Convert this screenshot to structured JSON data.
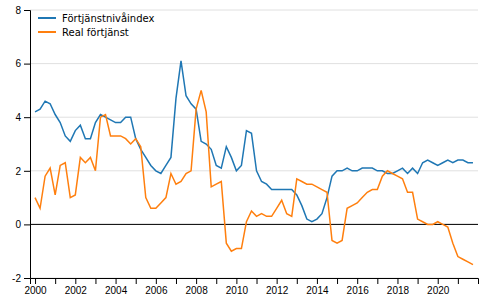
{
  "chart_data": {
    "type": "line",
    "x": [
      2000,
      2000.25,
      2000.5,
      2000.75,
      2001,
      2001.25,
      2001.5,
      2001.75,
      2002,
      2002.25,
      2002.5,
      2002.75,
      2003,
      2003.25,
      2003.5,
      2003.75,
      2004,
      2004.25,
      2004.5,
      2004.75,
      2005,
      2005.25,
      2005.5,
      2005.75,
      2006,
      2006.25,
      2006.5,
      2006.75,
      2007,
      2007.25,
      2007.5,
      2007.75,
      2008,
      2008.25,
      2008.5,
      2008.75,
      2009,
      2009.25,
      2009.5,
      2009.75,
      2010,
      2010.25,
      2010.5,
      2010.75,
      2011,
      2011.25,
      2011.5,
      2011.75,
      2012,
      2012.25,
      2012.5,
      2012.75,
      2013,
      2013.25,
      2013.5,
      2013.75,
      2014,
      2014.25,
      2014.5,
      2014.75,
      2015,
      2015.25,
      2015.5,
      2015.75,
      2016,
      2016.25,
      2016.5,
      2016.75,
      2017,
      2017.25,
      2017.5,
      2017.75,
      2018,
      2018.25,
      2018.5,
      2018.75,
      2019,
      2019.25,
      2019.5,
      2019.75,
      2020,
      2020.25,
      2020.5,
      2020.75,
      2021,
      2021.25,
      2021.5,
      2021.75
    ],
    "series": [
      {
        "name": "Förtjänstnivåindex",
        "values": [
          4.2,
          4.3,
          4.6,
          4.5,
          4.1,
          3.8,
          3.3,
          3.1,
          3.5,
          3.7,
          3.2,
          3.2,
          3.8,
          4.1,
          4.0,
          3.9,
          3.8,
          3.8,
          4.0,
          4.0,
          3.2,
          2.8,
          2.5,
          2.2,
          2.0,
          1.9,
          2.2,
          2.5,
          4.7,
          6.1,
          4.8,
          4.5,
          4.3,
          3.1,
          3.0,
          2.8,
          2.2,
          2.1,
          2.9,
          2.5,
          2.0,
          2.2,
          3.5,
          3.4,
          2.0,
          1.6,
          1.5,
          1.3,
          1.3,
          1.3,
          1.3,
          1.3,
          1.1,
          0.7,
          0.2,
          0.1,
          0.2,
          0.4,
          1.0,
          1.8,
          2.0,
          2.0,
          2.1,
          2.0,
          2.0,
          2.1,
          2.1,
          2.1,
          2.0,
          2.0,
          1.9,
          1.9,
          2.0,
          2.1,
          1.9,
          2.1,
          1.9,
          2.3,
          2.4,
          2.3,
          2.2,
          2.3,
          2.4,
          2.3,
          2.4,
          2.4,
          2.3,
          2.3
        ]
      },
      {
        "name": "Real förtjänst",
        "values": [
          1.0,
          0.6,
          1.8,
          2.1,
          1.1,
          2.2,
          2.3,
          1.0,
          1.1,
          2.5,
          2.3,
          2.5,
          2.0,
          4.0,
          4.1,
          3.3,
          3.3,
          3.3,
          3.2,
          3.0,
          3.2,
          2.9,
          1.0,
          0.6,
          0.6,
          0.8,
          1.0,
          1.9,
          1.5,
          1.6,
          1.9,
          2.0,
          4.3,
          5.0,
          4.2,
          1.4,
          1.5,
          1.6,
          -0.7,
          -1.0,
          -0.9,
          -0.9,
          0.1,
          0.5,
          0.3,
          0.4,
          0.3,
          0.3,
          0.6,
          0.9,
          0.4,
          0.3,
          1.7,
          1.6,
          1.5,
          1.5,
          1.4,
          1.3,
          1.2,
          -0.6,
          -0.7,
          -0.6,
          0.6,
          0.7,
          0.8,
          1.0,
          1.2,
          1.3,
          1.3,
          1.8,
          2.0,
          1.9,
          1.8,
          1.7,
          1.2,
          1.2,
          0.2,
          0.1,
          0.0,
          0.0,
          0.1,
          0.0,
          -0.1,
          -0.7,
          -1.2,
          -1.3,
          -1.4,
          -1.5
        ]
      }
    ],
    "xlim": [
      1999.75,
      2022.0
    ],
    "xticks": [
      2000,
      {
        "value": 2001,
        "label": null
      },
      2002,
      {
        "value": 2003,
        "label": null
      },
      2004,
      {
        "value": 2005,
        "label": null
      },
      2006,
      {
        "value": 2007,
        "label": null
      },
      2008,
      {
        "value": 2009,
        "label": null
      },
      2010,
      {
        "value": 2011,
        "label": null
      },
      2012,
      {
        "value": 2013,
        "label": null
      },
      2014,
      {
        "value": 2015,
        "label": null
      },
      2016,
      {
        "value": 2017,
        "label": null
      },
      2018,
      {
        "value": 2019,
        "label": null
      },
      2020,
      {
        "value": 2021,
        "label": null
      }
    ],
    "ylim": [
      -2,
      8
    ],
    "yticks": [
      -2,
      0,
      2,
      4,
      6,
      8
    ],
    "grid": true,
    "legend": "upper left"
  }
}
